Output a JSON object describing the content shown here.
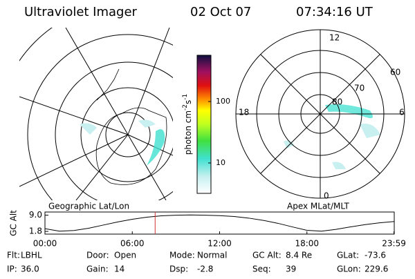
{
  "header": {
    "title": "Ultraviolet Imager",
    "date": "02 Oct 07",
    "time": "07:34:16 UT"
  },
  "left_map": {
    "label": "Geographic Lat/Lon"
  },
  "right_map": {
    "label": "Apex MLat/MLT",
    "mlt_labels": [
      "12",
      "18",
      "6",
      "0"
    ],
    "lat_labels": [
      "60",
      "70",
      "80"
    ]
  },
  "colorbar": {
    "units": [
      "photon cm",
      "-2",
      "s",
      "-1"
    ],
    "lim": [
      3.2,
      566
    ],
    "ticks": [
      10,
      100
    ],
    "log": true
  },
  "chart_data": {
    "type": "line",
    "ylabel": "GC Alt",
    "x": [
      0,
      1,
      2,
      3,
      4,
      5,
      6,
      7,
      8,
      9,
      10,
      11,
      12,
      13,
      14,
      15,
      16,
      17,
      18,
      19,
      20,
      21,
      22,
      23,
      24
    ],
    "series": [
      {
        "color": "#000000",
        "values": [
          3.0,
          1.9,
          2.2,
          3.2,
          4.6,
          6.0,
          7.2,
          8.1,
          8.7,
          9.0,
          9.1,
          9.0,
          8.8,
          8.4,
          7.7,
          6.7,
          5.4,
          3.8,
          2.3,
          1.9,
          2.7,
          3.8,
          4.8,
          5.6,
          6.2
        ]
      }
    ],
    "marker": 7.57,
    "marker_color": "#d03030",
    "xlim": [
      0,
      24
    ],
    "xticks": [
      {
        "value": 0,
        "label": "00:00"
      },
      {
        "value": 6,
        "label": "06:00"
      },
      {
        "value": 12,
        "label": "12:00"
      },
      {
        "value": 18,
        "label": "18:00"
      },
      {
        "value": 23.98,
        "label": "23:59"
      }
    ],
    "ylim": [
      0.6,
      10.4
    ],
    "yticks": [
      {
        "value": 1.8,
        "label": "1.8"
      },
      {
        "value": 9,
        "label": "9.0"
      }
    ]
  },
  "info": [
    [
      "Flt:",
      "LBHL"
    ],
    [
      "Door:",
      "Open"
    ],
    [
      "Mode:",
      "Normal"
    ],
    [
      "GC Alt:",
      "8.4 Re"
    ],
    [
      "GLat:",
      "-73.6"
    ],
    [
      "IP:",
      "36.0"
    ],
    [
      "Gain:",
      "14"
    ],
    [
      "Dsp:",
      "-2.8"
    ],
    [
      "Seq:",
      "39"
    ],
    [
      "GLon:",
      "229.6"
    ]
  ]
}
